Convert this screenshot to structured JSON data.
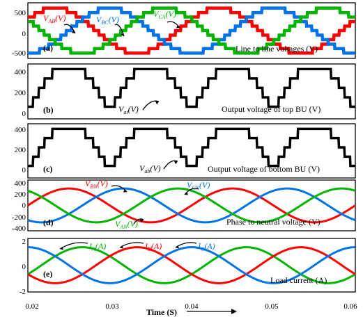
{
  "chart_data": [
    {
      "type": "line",
      "panel_label": "(a)",
      "title": "Line to line voltages (V)",
      "ylim": [
        -500,
        500
      ],
      "yticks": [
        "500",
        "0",
        "-500"
      ],
      "xlim": [
        0.02,
        0.06
      ],
      "series": [
        {
          "name": "V_AB (V)",
          "color": "#ff0000",
          "amplitude": 450,
          "frequency_hz": 50,
          "phase_deg": 30,
          "waveform": "stepped multilevel sine"
        },
        {
          "name": "V_BC (V)",
          "color": "#0073e6",
          "amplitude": 450,
          "frequency_hz": 50,
          "phase_deg": -90,
          "waveform": "stepped multilevel sine"
        },
        {
          "name": "V_CA (V)",
          "color": "#00b400",
          "amplitude": 450,
          "frequency_hz": 50,
          "phase_deg": 150,
          "waveform": "stepped multilevel sine"
        }
      ],
      "labels": {
        "s0": "V",
        "s0_sub": "AB",
        "s0_unit": "(V)",
        "s1": "V",
        "s1_sub": "BC",
        "s1_unit": "(V)",
        "s2": "V",
        "s2_sub": "CA",
        "s2_unit": "(V)"
      }
    },
    {
      "type": "line",
      "panel_label": "(b)",
      "title": "Output voltage of top BU (V)",
      "ylim": [
        0,
        420
      ],
      "yticks": [
        "400",
        "200",
        "0"
      ],
      "xlim": [
        0.02,
        0.06
      ],
      "series": [
        {
          "name": "V_at (V)",
          "color": "#000000",
          "levels": [
            80,
            160,
            240,
            320,
            400
          ],
          "frequency_hz": 100,
          "waveform": "rectified stepped sine"
        }
      ],
      "labels": {
        "s0": "V",
        "s0_sub": "at",
        "s0_unit": "(V)"
      }
    },
    {
      "type": "line",
      "panel_label": "(c)",
      "title": "Output voltage of bottom BU (V)",
      "ylim": [
        0,
        420
      ],
      "yticks": [
        "400",
        "200",
        "0"
      ],
      "xlim": [
        0.02,
        0.06
      ],
      "series": [
        {
          "name": "V_ab (V)",
          "color": "#000000",
          "levels": [
            80,
            160,
            240,
            320,
            400
          ],
          "frequency_hz": 100,
          "waveform": "rectified stepped sine"
        }
      ],
      "labels": {
        "s0": "V",
        "s0_sub": "ab",
        "s0_unit": "(V)"
      }
    },
    {
      "type": "line",
      "panel_label": "(d)",
      "title": "Phase to neutral voltage (V)",
      "ylim": [
        -400,
        400
      ],
      "yticks": [
        "400",
        "200",
        "0",
        "-200",
        "-400"
      ],
      "xlim": [
        0.02,
        0.06
      ],
      "series": [
        {
          "name": "V_BN (V)",
          "color": "#ff0000",
          "amplitude": 300,
          "frequency_hz": 50,
          "phase_deg": 0
        },
        {
          "name": "V_CN (V)",
          "color": "#0073e6",
          "amplitude": 300,
          "frequency_hz": 50,
          "phase_deg": -120
        },
        {
          "name": "V_AN (V)",
          "color": "#00b400",
          "amplitude": 300,
          "frequency_hz": 50,
          "phase_deg": 120
        }
      ],
      "labels": {
        "s0": "V",
        "s0_sub": "BN",
        "s0_unit": "(V)",
        "s1": "V",
        "s1_sub": "CN",
        "s1_unit": "(V)",
        "s2": "V",
        "s2_sub": "AN",
        "s2_unit": "(V)"
      }
    },
    {
      "type": "line",
      "panel_label": "(e)",
      "title": "Load current (A)",
      "ylim": [
        -2,
        2
      ],
      "yticks": [
        "2",
        "0",
        "-2"
      ],
      "xlim": [
        0.02,
        0.06
      ],
      "xticks": [
        "0.02",
        "0.03",
        "0.04",
        "0.05",
        "0.06"
      ],
      "xlabel": "Time  (S)",
      "series": [
        {
          "name": "I_A (A)",
          "color": "#00b400",
          "amplitude": 1.5,
          "frequency_hz": 50,
          "phase_deg": -30
        },
        {
          "name": "I_B (A)",
          "color": "#ff0000",
          "amplitude": 1.5,
          "frequency_hz": 50,
          "phase_deg": -150
        },
        {
          "name": "I_C (A)",
          "color": "#0073e6",
          "amplitude": 1.5,
          "frequency_hz": 50,
          "phase_deg": 90
        }
      ],
      "labels": {
        "s0": "I",
        "s0_sub": "A",
        "s0_unit": "(A)",
        "s1": "I",
        "s1_sub": "B",
        "s1_unit": "(A)",
        "s2": "I",
        "s2_sub": "C",
        "s2_unit": "(A)"
      }
    }
  ]
}
